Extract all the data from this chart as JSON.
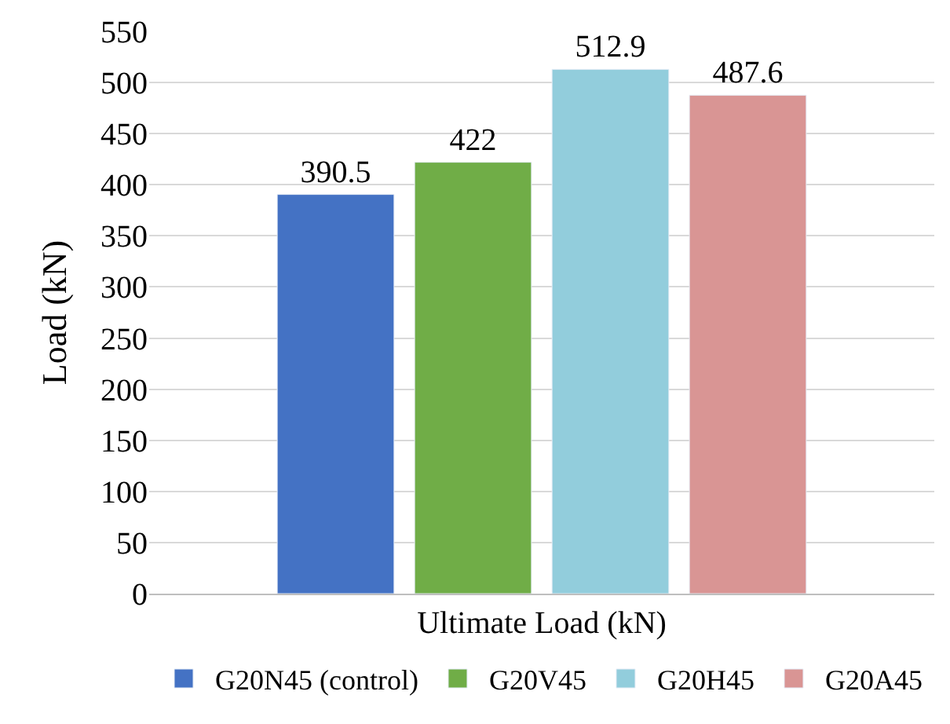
{
  "chart_data": {
    "type": "bar",
    "ylabel": "Load (kN)",
    "categories": [
      "Ultimate Load (kN)"
    ],
    "series": [
      {
        "name": "G20N45 (control)",
        "color": "#4472c4",
        "values": [
          390.5
        ]
      },
      {
        "name": "G20V45",
        "color": "#70ad47",
        "values": [
          422
        ]
      },
      {
        "name": "G20H45",
        "color": "#92cddc",
        "values": [
          512.9
        ]
      },
      {
        "name": "G20A45",
        "color": "#d99594",
        "values": [
          487.6
        ]
      }
    ],
    "ylim": [
      0,
      550
    ],
    "yticks": [
      0,
      50,
      100,
      150,
      200,
      250,
      300,
      350,
      400,
      450,
      500,
      550
    ],
    "grid": "y",
    "legend": "bottom",
    "data_labels": true
  }
}
